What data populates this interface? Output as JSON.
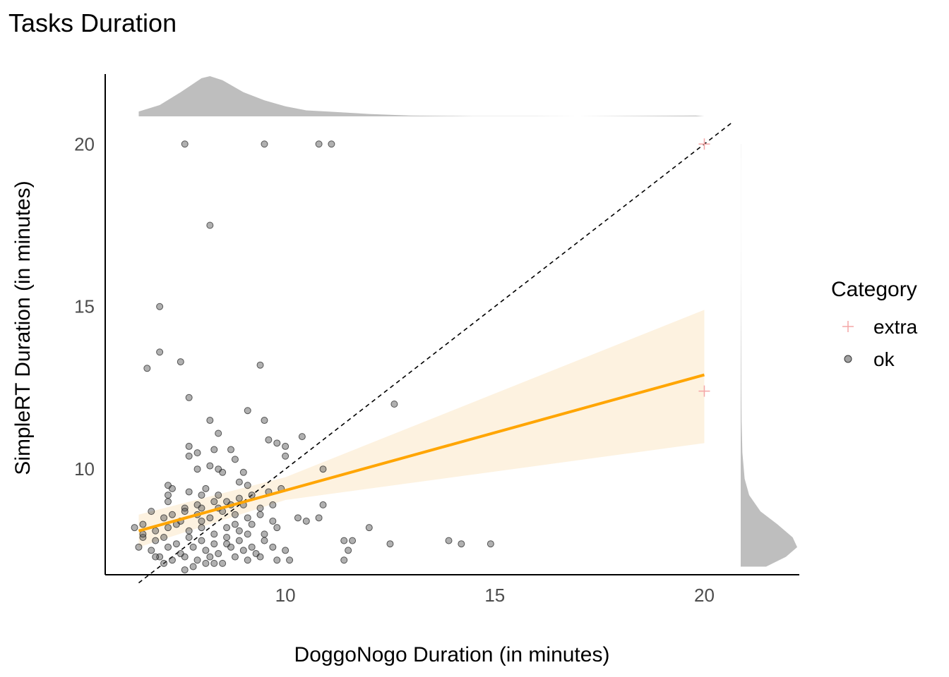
{
  "chart_data": {
    "type": "scatter",
    "title": "Tasks Duration",
    "xlabel": "DoggoNogo Duration (in minutes)",
    "ylabel": "SimpleRT Duration (in minutes)",
    "xlim": [
      5.7,
      20.7
    ],
    "ylim": [
      6.75,
      20.7
    ],
    "x_ticks": [
      "10",
      "15",
      "20"
    ],
    "y_ticks": [
      "10",
      "15",
      "20"
    ],
    "grid": false,
    "legend": {
      "title": "Category",
      "position": "right",
      "entries": [
        {
          "label": "extra",
          "shape": "cross",
          "color": "#f4a6a6"
        },
        {
          "label": "ok",
          "shape": "circle",
          "color": "#555555"
        }
      ]
    },
    "reference_line": {
      "type": "identity",
      "style": "dashed",
      "color": "#000000"
    },
    "regression": {
      "color": "#ffa500",
      "band_color": "#fdf0da",
      "x": [
        6.5,
        20.0
      ],
      "y": [
        8.1,
        12.9
      ],
      "ci_lower": [
        7.6,
        10.8
      ],
      "ci_upper": [
        8.6,
        14.9
      ],
      "ci_at_x": [
        6.5,
        10.0,
        20.0
      ],
      "ci_lower_mid": 9.05,
      "ci_upper_mid": 9.75
    },
    "series": [
      {
        "name": "ok",
        "points": [
          [
            7.6,
            20.0
          ],
          [
            9.5,
            20.0
          ],
          [
            10.8,
            20.0
          ],
          [
            11.1,
            20.0
          ],
          [
            8.2,
            17.5
          ],
          [
            7.0,
            15.0
          ],
          [
            7.0,
            13.6
          ],
          [
            6.7,
            13.1
          ],
          [
            7.5,
            13.3
          ],
          [
            9.4,
            13.2
          ],
          [
            7.7,
            12.2
          ],
          [
            12.6,
            12.0
          ],
          [
            9.1,
            11.8
          ],
          [
            8.2,
            11.5
          ],
          [
            9.5,
            11.5
          ],
          [
            10.4,
            11.0
          ],
          [
            8.4,
            11.1
          ],
          [
            9.6,
            10.9
          ],
          [
            7.7,
            10.7
          ],
          [
            9.8,
            10.8
          ],
          [
            10.0,
            10.7
          ],
          [
            7.9,
            10.5
          ],
          [
            8.3,
            10.6
          ],
          [
            8.7,
            10.6
          ],
          [
            10.0,
            10.4
          ],
          [
            7.7,
            10.4
          ],
          [
            8.8,
            10.3
          ],
          [
            8.2,
            10.1
          ],
          [
            7.9,
            10.0
          ],
          [
            8.4,
            10.0
          ],
          [
            8.5,
            9.9
          ],
          [
            10.9,
            10.0
          ],
          [
            9.0,
            9.9
          ],
          [
            7.2,
            9.5
          ],
          [
            8.1,
            9.4
          ],
          [
            8.9,
            9.6
          ],
          [
            9.1,
            9.5
          ],
          [
            9.6,
            9.3
          ],
          [
            7.2,
            9.2
          ],
          [
            7.7,
            9.3
          ],
          [
            8.0,
            9.2
          ],
          [
            8.3,
            9.0
          ],
          [
            8.6,
            9.0
          ],
          [
            8.9,
            9.1
          ],
          [
            9.2,
            9.2
          ],
          [
            9.9,
            9.4
          ],
          [
            7.2,
            9.0
          ],
          [
            7.6,
            8.8
          ],
          [
            7.9,
            8.9
          ],
          [
            8.4,
            8.8
          ],
          [
            8.7,
            8.9
          ],
          [
            9.0,
            8.9
          ],
          [
            9.4,
            8.8
          ],
          [
            9.7,
            8.9
          ],
          [
            10.9,
            8.9
          ],
          [
            6.8,
            8.7
          ],
          [
            7.1,
            8.5
          ],
          [
            7.3,
            8.6
          ],
          [
            7.6,
            8.7
          ],
          [
            7.9,
            8.6
          ],
          [
            8.2,
            8.5
          ],
          [
            8.5,
            8.7
          ],
          [
            8.8,
            8.6
          ],
          [
            9.1,
            8.5
          ],
          [
            9.4,
            8.6
          ],
          [
            9.7,
            8.4
          ],
          [
            10.3,
            8.5
          ],
          [
            10.5,
            8.4
          ],
          [
            10.8,
            8.5
          ],
          [
            6.4,
            8.2
          ],
          [
            6.6,
            8.3
          ],
          [
            6.9,
            8.1
          ],
          [
            7.2,
            8.2
          ],
          [
            7.4,
            8.3
          ],
          [
            7.7,
            8.1
          ],
          [
            8.0,
            8.2
          ],
          [
            8.3,
            8.0
          ],
          [
            8.6,
            8.2
          ],
          [
            8.9,
            8.1
          ],
          [
            9.2,
            8.3
          ],
          [
            9.5,
            8.0
          ],
          [
            9.8,
            8.2
          ],
          [
            12.0,
            8.2
          ],
          [
            6.6,
            7.9
          ],
          [
            6.9,
            7.8
          ],
          [
            7.1,
            7.9
          ],
          [
            7.4,
            7.7
          ],
          [
            7.7,
            7.9
          ],
          [
            8.0,
            7.8
          ],
          [
            8.3,
            7.7
          ],
          [
            8.6,
            7.9
          ],
          [
            8.9,
            7.8
          ],
          [
            9.2,
            7.6
          ],
          [
            9.5,
            7.8
          ],
          [
            11.4,
            7.8
          ],
          [
            11.6,
            7.8
          ],
          [
            13.9,
            7.8
          ],
          [
            6.5,
            7.6
          ],
          [
            6.8,
            7.5
          ],
          [
            7.2,
            7.6
          ],
          [
            7.5,
            7.4
          ],
          [
            7.8,
            7.6
          ],
          [
            8.1,
            7.5
          ],
          [
            8.4,
            7.4
          ],
          [
            8.7,
            7.6
          ],
          [
            9.0,
            7.5
          ],
          [
            9.3,
            7.4
          ],
          [
            9.7,
            7.6
          ],
          [
            10.0,
            7.5
          ],
          [
            12.5,
            7.7
          ],
          [
            14.2,
            7.7
          ],
          [
            14.9,
            7.7
          ],
          [
            7.0,
            7.3
          ],
          [
            7.3,
            7.2
          ],
          [
            7.6,
            7.3
          ],
          [
            7.9,
            7.2
          ],
          [
            8.2,
            7.3
          ],
          [
            8.5,
            7.1
          ],
          [
            8.8,
            7.3
          ],
          [
            9.1,
            7.2
          ],
          [
            9.4,
            7.3
          ],
          [
            9.8,
            7.2
          ],
          [
            10.1,
            7.2
          ],
          [
            11.5,
            7.5
          ],
          [
            11.4,
            7.2
          ],
          [
            7.8,
            7.0
          ],
          [
            8.1,
            7.1
          ],
          [
            8.3,
            7.1
          ],
          [
            7.6,
            6.9
          ],
          [
            6.6,
            8.0
          ],
          [
            6.9,
            7.3
          ],
          [
            7.1,
            7.1
          ],
          [
            8.6,
            7.7
          ],
          [
            8.8,
            8.3
          ],
          [
            9.1,
            8.0
          ],
          [
            7.5,
            8.4
          ],
          [
            8.0,
            8.8
          ],
          [
            7.3,
            9.4
          ],
          [
            8.0,
            8.4
          ],
          [
            8.4,
            9.2
          ]
        ]
      },
      {
        "name": "extra",
        "points": [
          [
            20.0,
            20.0
          ],
          [
            20.0,
            12.4
          ]
        ]
      }
    ],
    "marginal_x_density": {
      "x": [
        6.5,
        7.0,
        7.5,
        8.0,
        8.2,
        8.5,
        9.0,
        9.5,
        10.0,
        10.5,
        11.0,
        12.0,
        13.0,
        14.0,
        14.5,
        16.0,
        17.0,
        19.8,
        20.0
      ],
      "density": [
        0.12,
        0.28,
        0.6,
        0.95,
        1.0,
        0.9,
        0.6,
        0.4,
        0.25,
        0.15,
        0.12,
        0.06,
        0.02,
        0.01,
        0.005,
        0.005,
        0.0,
        0.02,
        0.0
      ]
    },
    "marginal_y_density": {
      "y": [
        7.0,
        7.3,
        7.6,
        7.9,
        8.3,
        8.7,
        9.2,
        9.7,
        10.5,
        11.5,
        12.5,
        13.5,
        14.5,
        15.0,
        16.0,
        17.5,
        19.0,
        20.0
      ],
      "density": [
        0.45,
        0.8,
        1.0,
        0.92,
        0.65,
        0.35,
        0.15,
        0.07,
        0.03,
        0.015,
        0.01,
        0.008,
        0.005,
        0.004,
        0.002,
        0.001,
        0.001,
        0.002
      ]
    }
  }
}
